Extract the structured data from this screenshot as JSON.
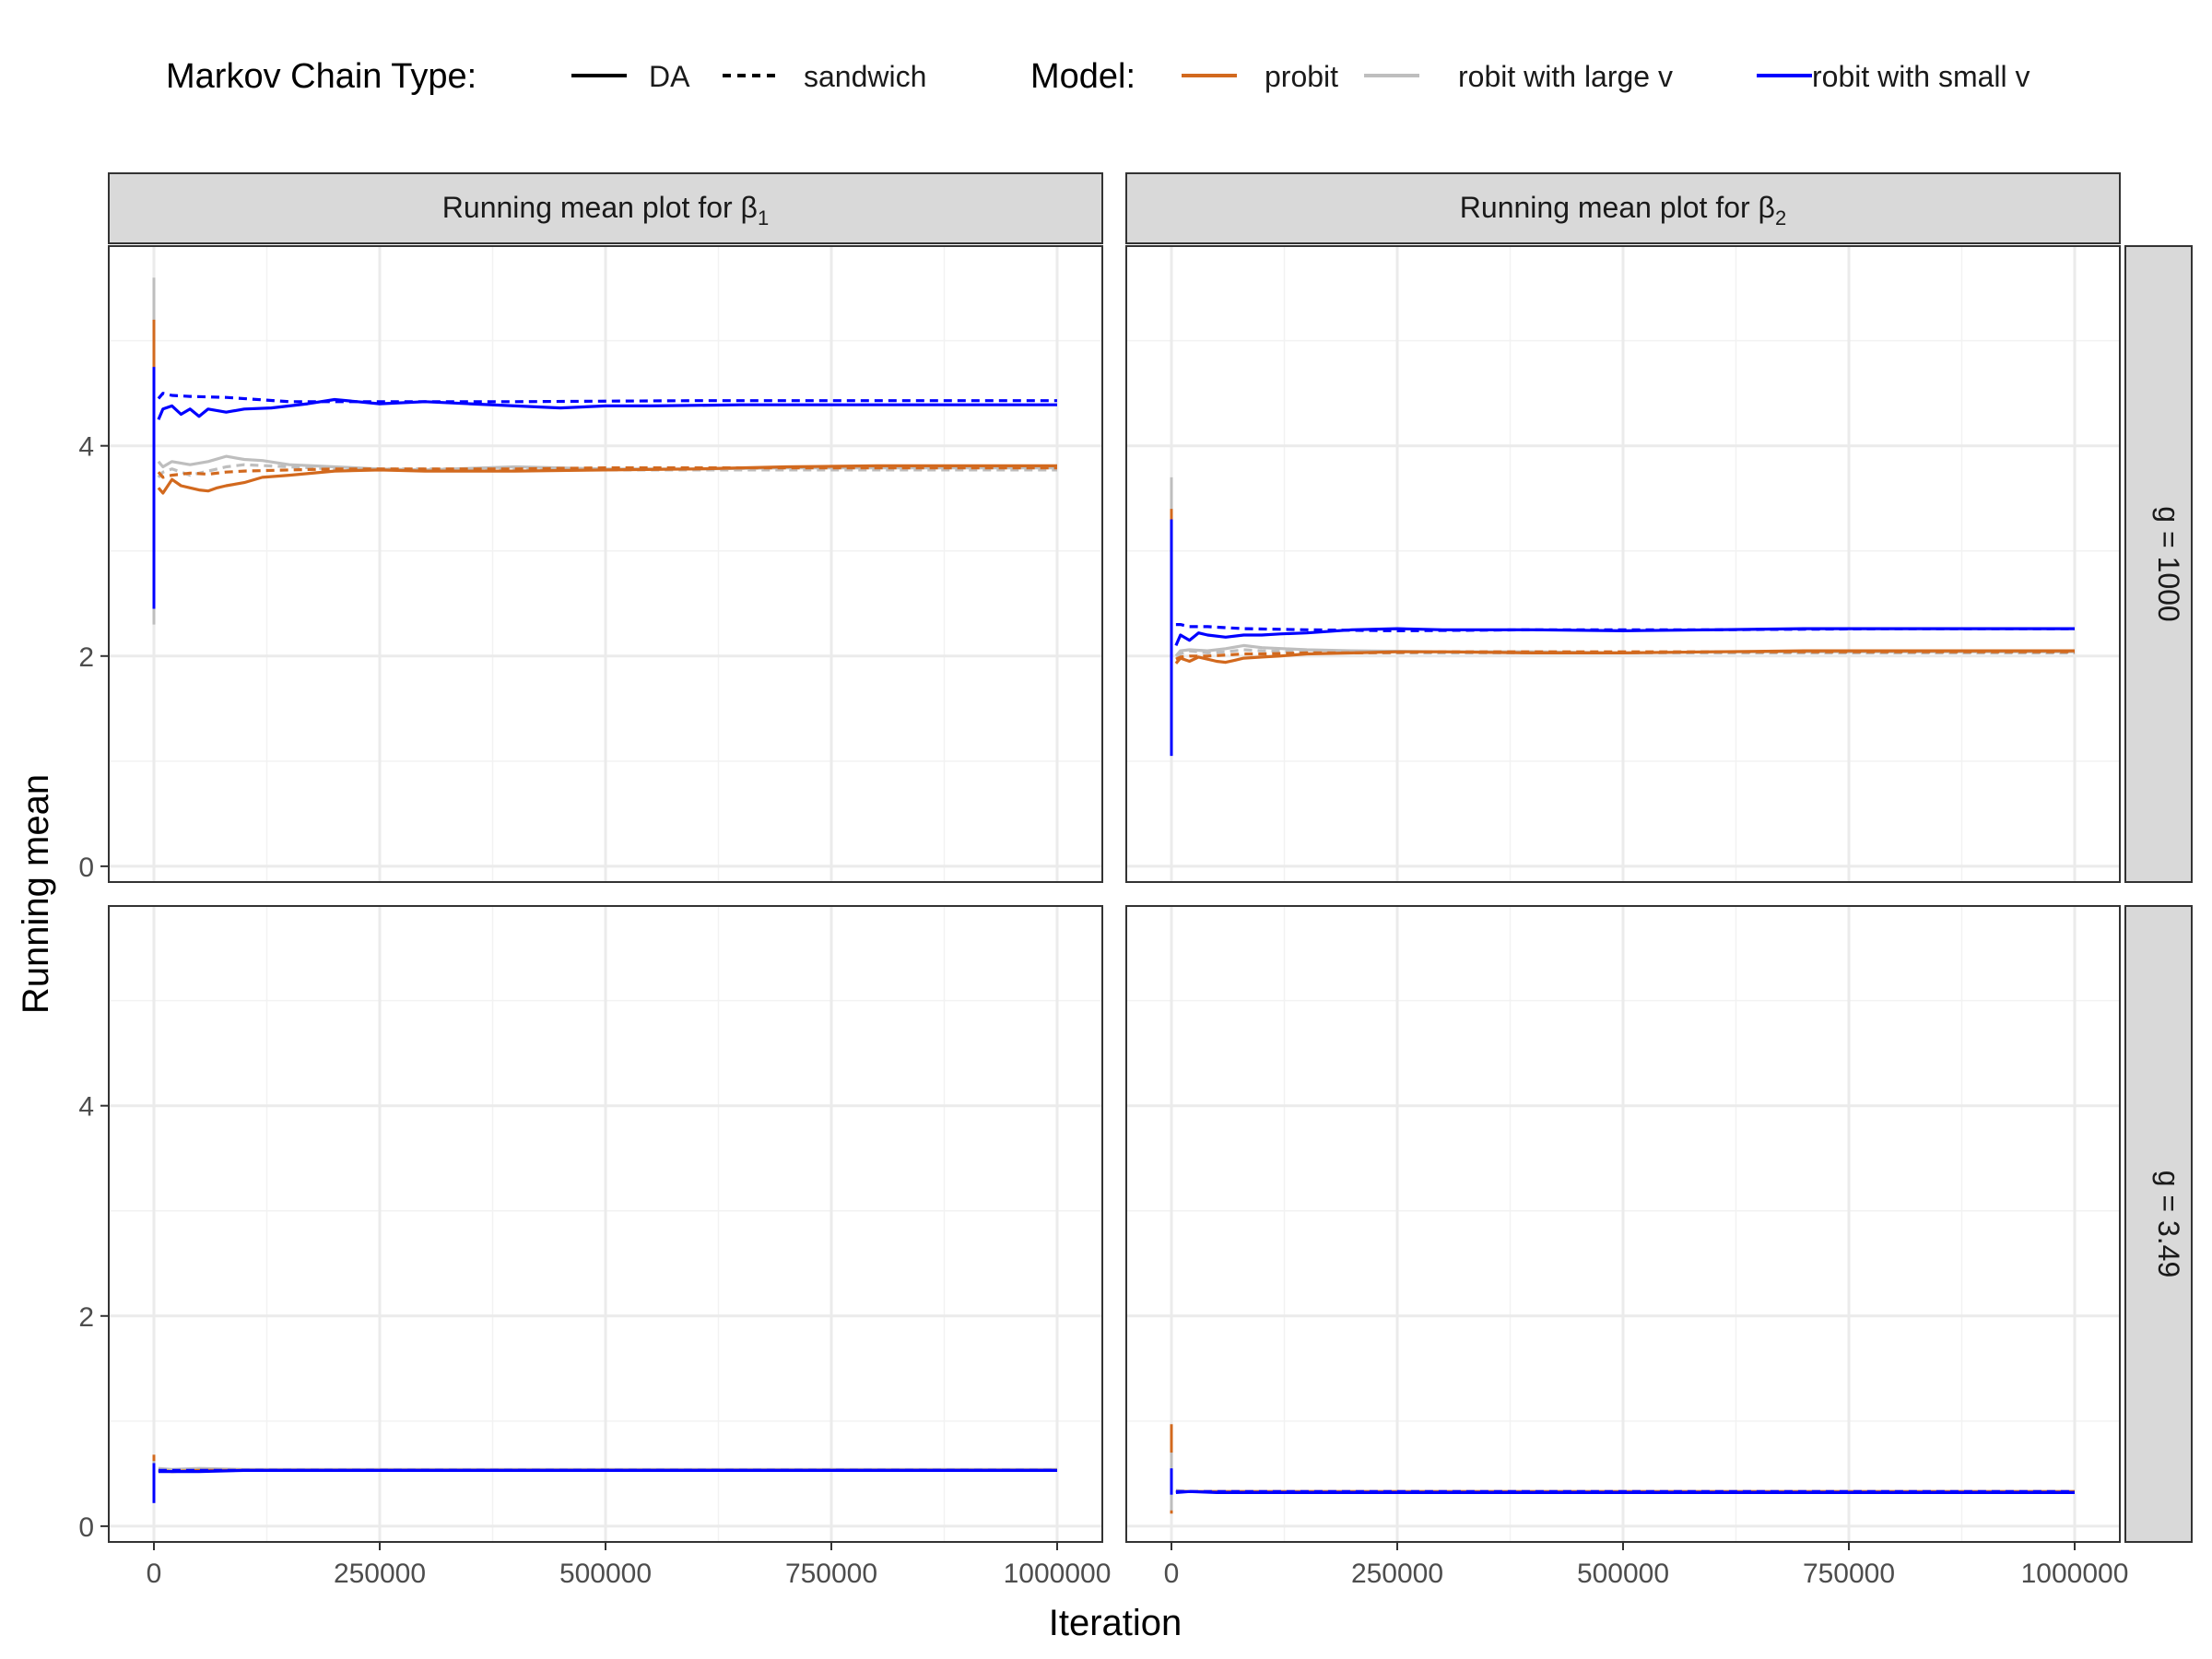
{
  "chart_data": {
    "type": "line",
    "legend": {
      "position": "top",
      "chain_title": "Markov Chain Type:",
      "chain_entries": [
        {
          "label": "DA",
          "linetype": "solid"
        },
        {
          "label": "sandwich",
          "linetype": "dashed"
        }
      ],
      "model_title": "Model:",
      "model_entries": [
        {
          "label": "probit",
          "color": "#D2691E"
        },
        {
          "label": "robit with large v",
          "color": "#BEBEBE"
        },
        {
          "label": "robit with small v",
          "color": "#0000FF"
        }
      ]
    },
    "xlabel": "Iteration",
    "ylabel": "Running mean",
    "xlim": [
      -50000,
      1050000
    ],
    "ylim": [
      -0.15,
      5.9
    ],
    "x_ticks": [
      0,
      250000,
      500000,
      750000,
      1000000
    ],
    "x_tick_labels": [
      "0",
      "250000",
      "500000",
      "750000",
      "1000000"
    ],
    "y_ticks": [
      0,
      2,
      4
    ],
    "y_tick_labels": [
      "0",
      "2",
      "4"
    ],
    "grid": true,
    "column_strips": [
      {
        "text": "Running mean plot for β",
        "sub": "1"
      },
      {
        "text": "Running mean plot for β",
        "sub": "2"
      }
    ],
    "row_strips": [
      "g = 1000",
      "g = 3.49"
    ],
    "panels": [
      {
        "row": 0,
        "col": 0,
        "spikes": [
          {
            "color": "#BEBEBE",
            "x": 0,
            "ymin": 2.3,
            "ymax": 5.6
          },
          {
            "color": "#D2691E",
            "x": 0,
            "ymin": 2.5,
            "ymax": 5.2
          },
          {
            "color": "#0000FF",
            "x": 0,
            "ymin": 2.45,
            "ymax": 4.75
          }
        ],
        "series": [
          {
            "model": "robit with small v",
            "chain": "sandwich",
            "x": [
              5000,
              10000,
              20000,
              40000,
              80000,
              150000,
              250000,
              400000,
              600000,
              800000,
              1000000
            ],
            "y": [
              4.45,
              4.5,
              4.48,
              4.47,
              4.46,
              4.42,
              4.42,
              4.42,
              4.43,
              4.43,
              4.43
            ]
          },
          {
            "model": "robit with small v",
            "chain": "DA",
            "x": [
              5000,
              10000,
              20000,
              30000,
              40000,
              50000,
              60000,
              80000,
              100000,
              130000,
              170000,
              200000,
              250000,
              300000,
              350000,
              400000,
              450000,
              500000,
              550000,
              650000,
              750000,
              850000,
              1000000
            ],
            "y": [
              4.25,
              4.35,
              4.38,
              4.3,
              4.35,
              4.28,
              4.35,
              4.32,
              4.35,
              4.36,
              4.4,
              4.44,
              4.4,
              4.42,
              4.4,
              4.38,
              4.36,
              4.38,
              4.38,
              4.39,
              4.39,
              4.39,
              4.39
            ]
          },
          {
            "model": "robit with large v",
            "chain": "DA",
            "x": [
              5000,
              10000,
              20000,
              40000,
              60000,
              80000,
              100000,
              120000,
              150000,
              200000,
              250000,
              300000,
              400000,
              500000,
              600000,
              700000,
              800000,
              900000,
              1000000
            ],
            "y": [
              3.85,
              3.8,
              3.85,
              3.82,
              3.85,
              3.9,
              3.87,
              3.86,
              3.82,
              3.8,
              3.78,
              3.77,
              3.8,
              3.78,
              3.78,
              3.79,
              3.79,
              3.79,
              3.79
            ]
          },
          {
            "model": "robit with large v",
            "chain": "sandwich",
            "x": [
              5000,
              10000,
              20000,
              40000,
              60000,
              80000,
              100000,
              150000,
              200000,
              300000,
              400000,
              500000,
              700000,
              1000000
            ],
            "y": [
              3.7,
              3.75,
              3.78,
              3.72,
              3.76,
              3.8,
              3.82,
              3.8,
              3.78,
              3.78,
              3.78,
              3.77,
              3.77,
              3.77
            ]
          },
          {
            "model": "probit",
            "chain": "DA",
            "x": [
              5000,
              10000,
              20000,
              30000,
              40000,
              50000,
              60000,
              70000,
              80000,
              100000,
              120000,
              150000,
              200000,
              250000,
              300000,
              400000,
              500000,
              600000,
              700000,
              800000,
              900000,
              1000000
            ],
            "y": [
              3.6,
              3.55,
              3.68,
              3.62,
              3.6,
              3.58,
              3.57,
              3.6,
              3.62,
              3.65,
              3.7,
              3.72,
              3.76,
              3.77,
              3.76,
              3.76,
              3.77,
              3.78,
              3.8,
              3.81,
              3.81,
              3.81
            ]
          },
          {
            "model": "probit",
            "chain": "sandwich",
            "x": [
              5000,
              10000,
              20000,
              40000,
              60000,
              80000,
              100000,
              150000,
              200000,
              300000,
              400000,
              500000,
              700000,
              1000000
            ],
            "y": [
              3.75,
              3.7,
              3.72,
              3.74,
              3.73,
              3.75,
              3.76,
              3.77,
              3.78,
              3.78,
              3.78,
              3.79,
              3.79,
              3.79
            ]
          }
        ]
      },
      {
        "row": 0,
        "col": 1,
        "spikes": [
          {
            "color": "#BEBEBE",
            "x": 0,
            "ymin": 1.6,
            "ymax": 3.7
          },
          {
            "color": "#D2691E",
            "x": 0,
            "ymin": 1.7,
            "ymax": 3.4
          },
          {
            "color": "#0000FF",
            "x": 0,
            "ymin": 1.05,
            "ymax": 3.3
          }
        ],
        "series": [
          {
            "model": "robit with small v",
            "chain": "sandwich",
            "x": [
              5000,
              10000,
              20000,
              40000,
              80000,
              150000,
              250000,
              400000,
              600000,
              800000,
              1000000
            ],
            "y": [
              2.3,
              2.3,
              2.28,
              2.28,
              2.26,
              2.25,
              2.24,
              2.25,
              2.25,
              2.26,
              2.26
            ]
          },
          {
            "model": "robit with small v",
            "chain": "DA",
            "x": [
              5000,
              10000,
              20000,
              30000,
              40000,
              60000,
              80000,
              100000,
              120000,
              150000,
              200000,
              250000,
              300000,
              400000,
              500000,
              600000,
              700000,
              800000,
              900000,
              1000000
            ],
            "y": [
              2.1,
              2.2,
              2.15,
              2.22,
              2.2,
              2.18,
              2.2,
              2.2,
              2.21,
              2.22,
              2.25,
              2.26,
              2.25,
              2.25,
              2.24,
              2.25,
              2.26,
              2.26,
              2.26,
              2.26
            ]
          },
          {
            "model": "robit with large v",
            "chain": "DA",
            "x": [
              5000,
              10000,
              20000,
              40000,
              60000,
              80000,
              100000,
              150000,
              200000,
              300000,
              400000,
              500000,
              600000,
              700000,
              800000,
              900000,
              1000000
            ],
            "y": [
              2.0,
              2.05,
              2.06,
              2.05,
              2.07,
              2.1,
              2.08,
              2.06,
              2.05,
              2.04,
              2.04,
              2.03,
              2.04,
              2.04,
              2.04,
              2.04,
              2.04
            ]
          },
          {
            "model": "robit with large v",
            "chain": "sandwich",
            "x": [
              5000,
              10000,
              20000,
              40000,
              60000,
              80000,
              100000,
              150000,
              200000,
              300000,
              500000,
              700000,
              1000000
            ],
            "y": [
              2.0,
              2.02,
              2.05,
              2.03,
              2.04,
              2.06,
              2.05,
              2.04,
              2.03,
              2.03,
              2.03,
              2.03,
              2.03
            ]
          },
          {
            "model": "probit",
            "chain": "DA",
            "x": [
              5000,
              10000,
              20000,
              30000,
              40000,
              50000,
              60000,
              70000,
              80000,
              100000,
              120000,
              150000,
              200000,
              250000,
              300000,
              400000,
              500000,
              600000,
              700000,
              800000,
              900000,
              1000000
            ],
            "y": [
              1.93,
              1.98,
              1.95,
              1.99,
              1.97,
              1.95,
              1.94,
              1.96,
              1.98,
              1.99,
              2.0,
              2.02,
              2.03,
              2.04,
              2.04,
              2.03,
              2.03,
              2.04,
              2.05,
              2.05,
              2.05,
              2.05
            ]
          },
          {
            "model": "probit",
            "chain": "sandwich",
            "x": [
              5000,
              10000,
              20000,
              40000,
              60000,
              80000,
              100000,
              150000,
              200000,
              300000,
              500000,
              700000,
              1000000
            ],
            "y": [
              1.97,
              1.99,
              2.0,
              2.0,
              2.01,
              2.02,
              2.02,
              2.03,
              2.03,
              2.04,
              2.04,
              2.04,
              2.04
            ]
          }
        ]
      },
      {
        "row": 1,
        "col": 0,
        "spikes": [
          {
            "color": "#D2691E",
            "x": 0,
            "ymin": 0.35,
            "ymax": 0.68
          },
          {
            "color": "#BEBEBE",
            "x": 0,
            "ymin": 0.3,
            "ymax": 0.62
          },
          {
            "color": "#0000FF",
            "x": 0,
            "ymin": 0.22,
            "ymax": 0.6
          }
        ],
        "series": [
          {
            "model": "robit with large v",
            "chain": "DA",
            "x": [
              5000,
              20000,
              50000,
              100000,
              200000,
              400000,
              700000,
              1000000
            ],
            "y": [
              0.55,
              0.54,
              0.55,
              0.54,
              0.54,
              0.54,
              0.54,
              0.54
            ]
          },
          {
            "model": "probit",
            "chain": "DA",
            "x": [
              5000,
              20000,
              50000,
              100000,
              200000,
              400000,
              700000,
              1000000
            ],
            "y": [
              0.53,
              0.52,
              0.53,
              0.53,
              0.53,
              0.53,
              0.53,
              0.53
            ]
          },
          {
            "model": "robit with small v",
            "chain": "sandwich",
            "x": [
              5000,
              20000,
              50000,
              100000,
              200000,
              400000,
              700000,
              1000000
            ],
            "y": [
              0.53,
              0.53,
              0.53,
              0.53,
              0.53,
              0.53,
              0.53,
              0.53
            ]
          },
          {
            "model": "robit with small v",
            "chain": "DA",
            "x": [
              5000,
              20000,
              50000,
              100000,
              200000,
              400000,
              700000,
              1000000
            ],
            "y": [
              0.52,
              0.52,
              0.52,
              0.53,
              0.53,
              0.53,
              0.53,
              0.53
            ]
          }
        ]
      },
      {
        "row": 1,
        "col": 1,
        "spikes": [
          {
            "color": "#D2691E",
            "x": 0,
            "ymin": 0.12,
            "ymax": 0.97
          },
          {
            "color": "#BEBEBE",
            "x": 0,
            "ymin": 0.15,
            "ymax": 0.7
          },
          {
            "color": "#0000FF",
            "x": 0,
            "ymin": 0.3,
            "ymax": 0.55
          }
        ],
        "series": [
          {
            "model": "robit with large v",
            "chain": "DA",
            "x": [
              5000,
              20000,
              50000,
              100000,
              200000,
              400000,
              700000,
              1000000
            ],
            "y": [
              0.34,
              0.33,
              0.33,
              0.33,
              0.33,
              0.33,
              0.33,
              0.33
            ]
          },
          {
            "model": "probit",
            "chain": "DA",
            "x": [
              5000,
              20000,
              50000,
              100000,
              200000,
              400000,
              700000,
              1000000
            ],
            "y": [
              0.33,
              0.33,
              0.33,
              0.33,
              0.33,
              0.33,
              0.33,
              0.33
            ]
          },
          {
            "model": "robit with small v",
            "chain": "sandwich",
            "x": [
              5000,
              20000,
              50000,
              100000,
              200000,
              400000,
              700000,
              1000000
            ],
            "y": [
              0.33,
              0.33,
              0.33,
              0.33,
              0.33,
              0.33,
              0.33,
              0.33
            ]
          },
          {
            "model": "robit with small v",
            "chain": "DA",
            "x": [
              5000,
              20000,
              50000,
              100000,
              200000,
              400000,
              700000,
              1000000
            ],
            "y": [
              0.32,
              0.33,
              0.32,
              0.32,
              0.32,
              0.32,
              0.32,
              0.32
            ]
          }
        ]
      }
    ]
  }
}
